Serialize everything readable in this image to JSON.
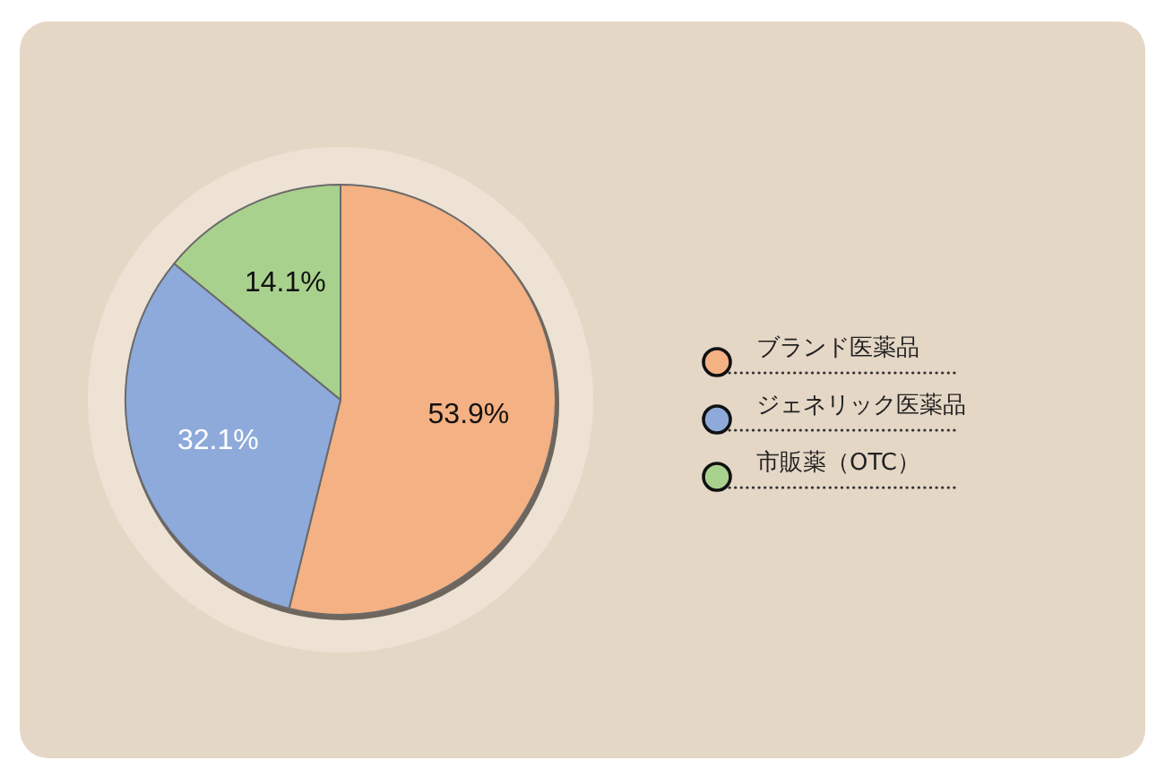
{
  "chart_data": {
    "type": "pie",
    "categories": [
      "ブランド医薬品",
      "ジェネリック医薬品",
      "市販薬（OTC）"
    ],
    "values": [
      53.9,
      32.1,
      14.1
    ],
    "value_labels": [
      "53.9%",
      "32.1%",
      "14.1%"
    ],
    "colors": [
      "#f4b183",
      "#8eaadb",
      "#a9d18e"
    ],
    "legend": "right"
  }
}
